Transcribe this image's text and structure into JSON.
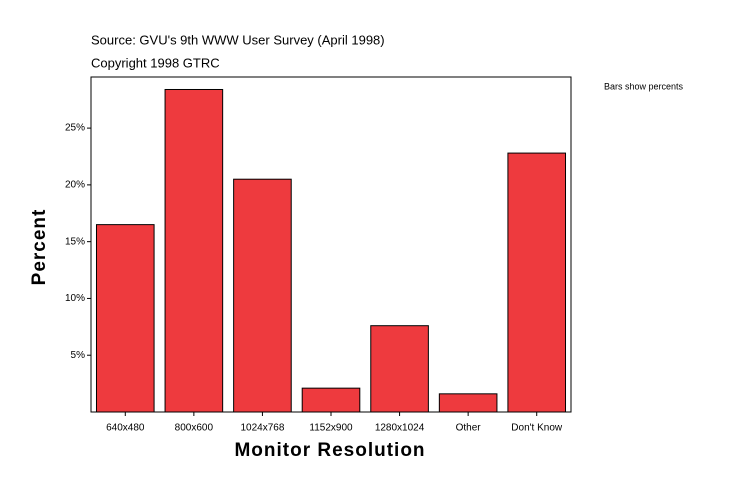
{
  "chart_data": {
    "type": "bar",
    "source": "Source: GVU's 9th WWW User Survey (April 1998)",
    "copyright": "Copyright 1998 GTRC",
    "note": "Bars show percents",
    "x_label": "Monitor Resolution",
    "y_label": "Percent",
    "categories": [
      "640x480",
      "800x600",
      "1024x768",
      "1152x900",
      "1280x1024",
      "Other",
      "Don't Know"
    ],
    "values": [
      16.5,
      28.4,
      20.5,
      2.1,
      7.6,
      1.6,
      22.8
    ],
    "color": "#ee3a3e",
    "ylim": [
      0,
      29.5
    ],
    "yticks": [
      {
        "value": 5,
        "label": "5%"
      },
      {
        "value": 10,
        "label": "10%"
      },
      {
        "value": 15,
        "label": "15%"
      },
      {
        "value": 20,
        "label": "20%"
      },
      {
        "value": 25,
        "label": "25%"
      }
    ],
    "grid": false
  }
}
